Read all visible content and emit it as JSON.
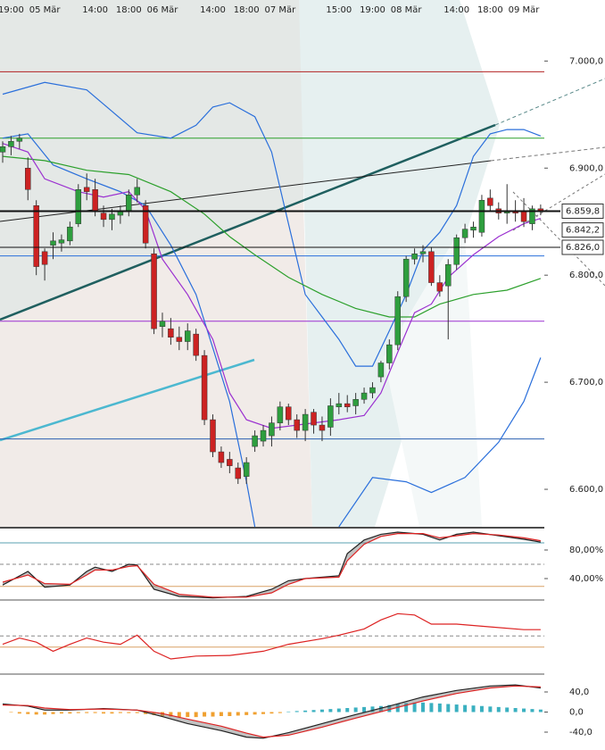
{
  "chart_data": [
    {
      "type": "candlestick",
      "categories": [
        null,
        "19:00",
        null,
        null,
        null,
        "05 Mär",
        null,
        null,
        null,
        null,
        null,
        "14:00",
        null,
        null,
        null,
        "18:00",
        null,
        null,
        null,
        "06 Mär",
        null,
        null,
        null,
        null,
        null,
        "14:00",
        null,
        null,
        null,
        "18:00",
        null,
        null,
        null,
        "07 Mär",
        null,
        null,
        null,
        null,
        null,
        null,
        "15:00",
        null,
        null,
        null,
        "19:00",
        null,
        null,
        null,
        "08 Mär",
        null,
        null,
        null,
        null,
        null,
        "14:00",
        null,
        null,
        null,
        "18:00",
        null,
        null,
        null,
        "09 Mär",
        null,
        null
      ],
      "open": [
        6915,
        6920,
        6925,
        6900,
        6865,
        6822,
        6828,
        6830,
        6832,
        6848,
        6882,
        6880,
        6858,
        6852,
        6856,
        6860,
        6875,
        6865,
        6820,
        6752,
        6750,
        6742,
        6738,
        6745,
        6725,
        6665,
        6635,
        6628,
        6620,
        6612,
        6640,
        6645,
        6650,
        6662,
        6677,
        6665,
        6655,
        6672,
        6660,
        6658,
        6677,
        6680,
        6678,
        6684,
        6690,
        6705,
        6718,
        6735,
        6780,
        6815,
        6820,
        6822,
        6793,
        6790,
        6810,
        6835,
        6842,
        6840,
        6872,
        6862,
        6858,
        6860,
        6860,
        6848,
        6862
      ],
      "high": [
        6925,
        6930,
        6932,
        6910,
        6870,
        6825,
        6840,
        6838,
        6850,
        6885,
        6895,
        6890,
        6865,
        6862,
        6865,
        6880,
        6890,
        6870,
        6825,
        6765,
        6760,
        6752,
        6755,
        6750,
        6730,
        6670,
        6640,
        6635,
        6625,
        6630,
        6655,
        6660,
        6668,
        6682,
        6680,
        6670,
        6675,
        6675,
        6668,
        6685,
        6690,
        6688,
        6690,
        6695,
        6700,
        6720,
        6740,
        6785,
        6818,
        6825,
        6828,
        6826,
        6800,
        6815,
        6838,
        6848,
        6850,
        6875,
        6880,
        6868,
        6885,
        6870,
        6872,
        6865,
        6866
      ],
      "low": [
        6905,
        6912,
        6918,
        6870,
        6800,
        6795,
        6815,
        6822,
        6828,
        6845,
        6870,
        6855,
        6845,
        6842,
        6848,
        6855,
        6868,
        6825,
        6745,
        6742,
        6735,
        6730,
        6730,
        6720,
        6660,
        6630,
        6620,
        6615,
        6605,
        6605,
        6635,
        6640,
        6640,
        6655,
        6660,
        6648,
        6645,
        6652,
        6645,
        6650,
        6670,
        6672,
        6670,
        6680,
        6685,
        6700,
        6712,
        6730,
        6775,
        6810,
        6812,
        6790,
        6780,
        6740,
        6805,
        6830,
        6835,
        6836,
        6860,
        6852,
        6848,
        6850,
        6845,
        6842,
        6856
      ],
      "close": [
        6920,
        6925,
        6928,
        6880,
        6808,
        6810,
        6832,
        6833,
        6845,
        6880,
        6878,
        6860,
        6852,
        6857,
        6860,
        6875,
        6882,
        6830,
        6750,
        6757,
        6742,
        6738,
        6748,
        6725,
        6665,
        6635,
        6625,
        6622,
        6610,
        6625,
        6650,
        6655,
        6662,
        6677,
        6665,
        6655,
        6670,
        6660,
        6655,
        6678,
        6680,
        6677,
        6684,
        6690,
        6695,
        6718,
        6735,
        6780,
        6815,
        6820,
        6822,
        6793,
        6785,
        6810,
        6835,
        6843,
        6845,
        6870,
        6865,
        6858,
        6860,
        6858,
        6850,
        6862,
        6860
      ],
      "up_color": "#2e9e3e",
      "down_color": "#cc2222",
      "ylim": [
        6565,
        7057
      ],
      "yticks": [
        {
          "value": 7000,
          "label": "7.000,0"
        },
        {
          "value": 6900,
          "label": "6.900,0"
        },
        {
          "value": 6800,
          "label": "6.800,0"
        },
        {
          "value": 6700,
          "label": "6.700,0"
        },
        {
          "value": 6600,
          "label": "6.600,0"
        }
      ],
      "levels": [
        {
          "value": 6990,
          "color": "#b22222"
        },
        {
          "value": 6928,
          "color": "#2ca02c"
        },
        {
          "value": 6818,
          "color": "#2a6fdb"
        },
        {
          "value": 6757,
          "color": "#9b30d0"
        },
        {
          "value": 6647,
          "color": "#2a5fb0"
        }
      ],
      "price_marks": [
        {
          "value": 6859.8,
          "label": "6.859,8",
          "line_width": 2
        },
        {
          "value": 6842.2,
          "label": "6.842,2",
          "line_width": 0
        },
        {
          "value": 6826.0,
          "label": "6.826,0",
          "line_width": 1
        }
      ],
      "series": [
        {
          "color": "#2a6fdb",
          "x": [
            0,
            5,
            10,
            13,
            16,
            20,
            23,
            25,
            27,
            30,
            32,
            34,
            36,
            38,
            40,
            42,
            44,
            46,
            48,
            50,
            52,
            54,
            56,
            58,
            60,
            62,
            64
          ],
          "values": [
            6969,
            6980,
            6973,
            6953,
            6933,
            6928,
            6940,
            6957,
            6961,
            6948,
            6915,
            6848,
            6782,
            6761,
            6740,
            6715,
            6715,
            6748,
            6782,
            6823,
            6840,
            6865,
            6911,
            6932,
            6936,
            6936,
            6930
          ]
        },
        {
          "color": "#2a6fdb",
          "x": [
            0,
            3,
            6,
            10,
            14,
            17,
            20,
            23,
            25,
            27,
            29,
            30,
            35,
            40,
            44,
            48,
            51,
            55,
            59,
            62,
            64
          ],
          "values": [
            6928,
            6932,
            6903,
            6890,
            6878,
            6865,
            6828,
            6782,
            6732,
            6682,
            6607,
            6565,
            null,
            6565,
            6611,
            6607,
            6597,
            6611,
            6644,
            6682,
            6723
          ]
        },
        {
          "color": "#2ca02c",
          "x": [
            0,
            5,
            10,
            15,
            20,
            24,
            27,
            30,
            34,
            38,
            42,
            46,
            49,
            52,
            56,
            60,
            64
          ],
          "values": [
            6911,
            6907,
            6898,
            6894,
            6878,
            6857,
            6836,
            6819,
            6798,
            6782,
            6769,
            6761,
            6761,
            6773,
            6782,
            6786,
            6797
          ]
        },
        {
          "color": "#9b30d0",
          "x": [
            0,
            3,
            5,
            9,
            12,
            15,
            17,
            19,
            22,
            25,
            27,
            29,
            32,
            36,
            40,
            43,
            45,
            47,
            49,
            51,
            53,
            56,
            59,
            62,
            64
          ],
          "values": [
            6923,
            6915,
            6890,
            6878,
            6873,
            6878,
            6861,
            6815,
            6782,
            6740,
            6690,
            6665,
            6657,
            6661,
            6665,
            6669,
            6690,
            6728,
            6765,
            6773,
            6798,
            6819,
            6836,
            6848,
            6853
          ]
        }
      ]
    },
    {
      "type": "line",
      "fill_between": true,
      "ylim": [
        12.5,
        110
      ],
      "yticks": [
        {
          "value": 80,
          "label": "80,00%"
        },
        {
          "value": 40,
          "label": "40,00%"
        }
      ],
      "levels": [
        {
          "value": 90,
          "color": "#5aa0b0"
        },
        {
          "value": 60,
          "color": "#888888",
          "dashed": true
        },
        {
          "value": 29,
          "color": "#d9a066"
        }
      ],
      "series": [
        {
          "color": "#222222",
          "x": [
            0,
            3,
            5,
            8,
            10,
            11,
            13,
            15,
            16,
            18,
            21,
            25,
            29,
            32,
            34,
            36,
            40,
            41,
            43,
            45,
            47,
            50,
            52,
            54,
            56,
            59,
            62,
            64
          ],
          "values": [
            31,
            50,
            28,
            31,
            50,
            56,
            50,
            60,
            59,
            25,
            15,
            13,
            15,
            25,
            37,
            40,
            44,
            75,
            94,
            102,
            105,
            102,
            94,
            102,
            105,
            100,
            95,
            91
          ]
        },
        {
          "color": "#dd2222",
          "x": [
            0,
            3,
            5,
            8,
            10,
            11,
            13,
            15,
            16,
            18,
            21,
            25,
            29,
            32,
            34,
            36,
            40,
            41,
            43,
            45,
            47,
            50,
            52,
            54,
            56,
            59,
            62,
            64
          ],
          "values": [
            35,
            45,
            33,
            32,
            45,
            52,
            52,
            57,
            58,
            32,
            18,
            14,
            14,
            20,
            32,
            40,
            42,
            65,
            88,
            99,
            103,
            103,
            97,
            100,
            103,
            101,
            97,
            93
          ]
        }
      ]
    },
    {
      "type": "line",
      "ylim": [
        0,
        100
      ],
      "levels": [
        {
          "value": 51,
          "color": "#888888",
          "dashed": true
        },
        {
          "value": 35,
          "color": "#d9a066"
        }
      ],
      "series": [
        {
          "color": "#dd2222",
          "x": [
            0,
            2,
            4,
            6,
            8,
            10,
            12,
            14,
            16,
            18,
            20,
            23,
            27,
            31,
            34,
            38,
            40,
            43,
            45,
            47,
            49,
            51,
            54,
            58,
            62,
            64
          ],
          "values": [
            39,
            48,
            42,
            29,
            39,
            48,
            42,
            39,
            52,
            29,
            18,
            22,
            23,
            29,
            39,
            47,
            52,
            61,
            74,
            83,
            81,
            68,
            68,
            64,
            60,
            60
          ]
        }
      ]
    },
    {
      "type": "macd",
      "fill_between": true,
      "ylim": [
        -72,
        72
      ],
      "yticks": [
        {
          "value": 40,
          "label": "40,0"
        },
        {
          "value": 0,
          "label": "0,0"
        },
        {
          "value": -40,
          "label": "-40,0"
        }
      ],
      "histogram": [
        0,
        -1,
        -3,
        -4,
        -5,
        -5,
        -4,
        -3,
        -3,
        -2,
        -2,
        -2,
        -3,
        -3,
        -2,
        -2,
        -2,
        -4,
        -6,
        -8,
        -9,
        -10,
        -10,
        -10,
        -9,
        -9,
        -8,
        -8,
        -7,
        -6,
        -5,
        -4,
        -3,
        -2,
        1,
        2,
        3,
        4,
        5,
        6,
        7,
        8,
        9,
        10,
        11,
        12,
        14,
        16,
        18,
        19,
        19,
        18,
        17,
        16,
        15,
        14,
        13,
        12,
        11,
        10,
        9,
        8,
        7,
        6,
        5
      ],
      "positive_color": "#3ab0c0",
      "negative_color": "#f0a030",
      "series": [
        {
          "color": "#222222",
          "x": [
            0,
            3,
            5,
            8,
            12,
            16,
            19,
            22,
            26,
            29,
            31,
            34,
            38,
            42,
            46,
            50,
            54,
            58,
            61,
            64
          ],
          "values": [
            16,
            12,
            4,
            4,
            7,
            4,
            -9,
            -23,
            -37,
            -50,
            -52,
            -41,
            -23,
            -5,
            12,
            30,
            43,
            52,
            54,
            48
          ]
        },
        {
          "color": "#dd2222",
          "x": [
            0,
            3,
            5,
            8,
            12,
            16,
            19,
            22,
            26,
            29,
            31,
            34,
            38,
            42,
            46,
            50,
            54,
            58,
            61,
            64
          ],
          "values": [
            14,
            13,
            8,
            5,
            6,
            4,
            -3,
            -14,
            -28,
            -42,
            -50,
            -46,
            -30,
            -12,
            5,
            22,
            37,
            48,
            52,
            50
          ]
        }
      ]
    }
  ]
}
